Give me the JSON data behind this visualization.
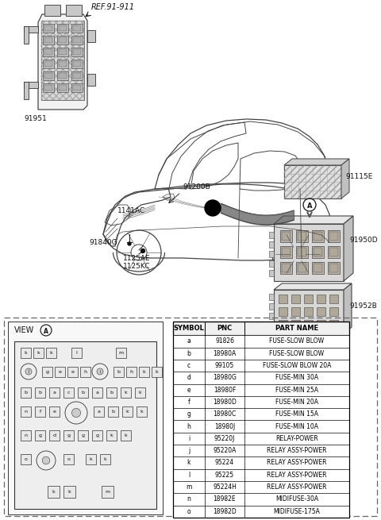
{
  "bg_color": "#ffffff",
  "line_color": "#333333",
  "dark_color": "#111111",
  "gray_color": "#888888",
  "light_gray": "#cccccc",
  "table_headers": [
    "SYMBOL",
    "PNC",
    "PART NAME"
  ],
  "table_rows": [
    [
      "a",
      "91826",
      "FUSE-SLOW BLOW"
    ],
    [
      "b",
      "18980A",
      "FUSE-SLOW BLOW"
    ],
    [
      "c",
      "99105",
      "FUSE-SLOW BLOW 20A"
    ],
    [
      "d",
      "18980G",
      "FUSE-MIN 30A"
    ],
    [
      "e",
      "18980F",
      "FUSE-MIN 25A"
    ],
    [
      "f",
      "18980D",
      "FUSE-MIN 20A"
    ],
    [
      "g",
      "18980C",
      "FUSE-MIN 15A"
    ],
    [
      "h",
      "18980J",
      "FUSE-MIN 10A"
    ],
    [
      "i",
      "95220J",
      "RELAY-POWER"
    ],
    [
      "j",
      "95220A",
      "RELAY ASSY-POWER"
    ],
    [
      "k",
      "95224",
      "RELAY ASSY-POWER"
    ],
    [
      "l",
      "95225",
      "RELAY ASSY-POWER"
    ],
    [
      "m",
      "95224H",
      "RELAY ASSY-POWER"
    ],
    [
      "n",
      "18982E",
      "MIDIFUSE-30A"
    ],
    [
      "o",
      "18982D",
      "MIDIFUSE-175A"
    ]
  ],
  "labels": {
    "ref_91911": "REF.91-911",
    "part_91200B": "91200B",
    "part_1141AC": "1141AC",
    "part_91840G": "91840G",
    "part_1125AE": "1125AE",
    "part_1125KC": "1125KC",
    "part_91951": "91951",
    "part_91115E": "91115E",
    "part_91950D": "91950D",
    "part_91952B": "91952B",
    "view_a": "VIEW"
  }
}
